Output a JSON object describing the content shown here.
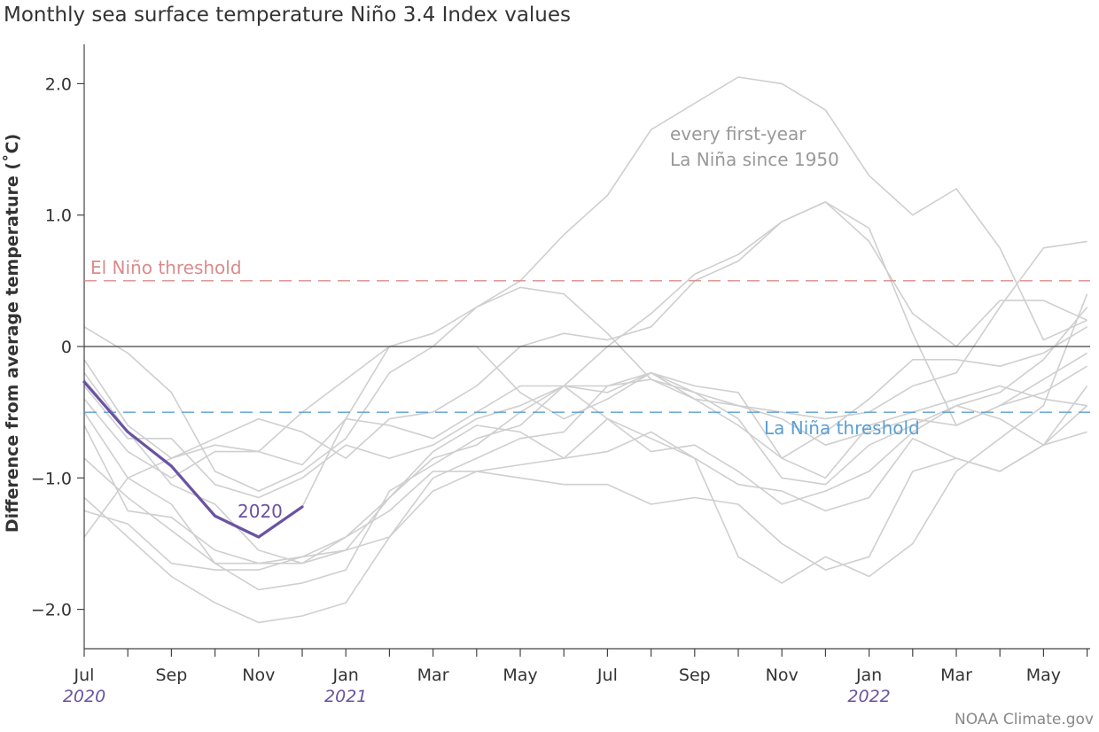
{
  "chart_data": {
    "type": "line",
    "title": "Monthly sea surface temperature Niño 3.4 Index values",
    "ylabel": "Difference from average temperature (˚C)",
    "ylim": [
      -2.3,
      2.25
    ],
    "x_months": [
      "Jul 2020",
      "Aug 2020",
      "Sep 2020",
      "Oct 2020",
      "Nov 2020",
      "Dec 2020",
      "Jan 2021",
      "Feb 2021",
      "Mar 2021",
      "Apr 2021",
      "May 2021",
      "Jun 2021",
      "Jul 2021",
      "Aug 2021",
      "Sep 2021",
      "Oct 2021",
      "Nov 2021",
      "Dec 2021",
      "Jan 2022",
      "Feb 2022",
      "Mar 2022",
      "Apr 2022",
      "May 2022",
      "Jun 2022"
    ],
    "x_tick_labels": [
      "Jul",
      "Sep",
      "Nov",
      "Jan",
      "Mar",
      "May",
      "Jul",
      "Sep",
      "Nov",
      "Jan",
      "Mar",
      "May"
    ],
    "x_tick_label_indices": [
      0,
      2,
      4,
      6,
      8,
      10,
      12,
      14,
      16,
      18,
      20,
      22
    ],
    "year_labels": [
      {
        "text": "2020",
        "index": 0
      },
      {
        "text": "2021",
        "index": 6
      },
      {
        "text": "2022",
        "index": 18
      }
    ],
    "y_ticks": [
      {
        "value": 2.0,
        "label": "2.0"
      },
      {
        "value": 1.0,
        "label": "1.0"
      },
      {
        "value": 0,
        "label": "0"
      },
      {
        "value": -1.0,
        "label": "−1.0"
      },
      {
        "value": -2.0,
        "label": "−2.0"
      }
    ],
    "thresholds": [
      {
        "label": "El Niño threshold",
        "value": 0.5,
        "color": "#d98c8c"
      },
      {
        "label": "La Niña threshold",
        "value": -0.5,
        "color": "#5a9fd4"
      }
    ],
    "background_annotation": [
      "every first-year",
      "La Niña since 1950"
    ],
    "background_color": "#cfcfcf",
    "highlight_color": "#6a52a3",
    "background_series": [
      [
        -0.2,
        -0.65,
        -0.9,
        -1.28,
        -1.45,
        -1.22,
        -0.55,
        -0.6,
        -0.7,
        -0.5,
        -0.3,
        -0.3,
        -0.3,
        -0.2,
        -0.35,
        -0.45,
        -0.55,
        -0.75,
        -0.65,
        -0.55,
        -0.6,
        -0.45,
        -0.35,
        -0.15
      ],
      [
        0.15,
        -0.05,
        -0.35,
        -0.95,
        -1.1,
        -0.95,
        -0.7,
        -0.2,
        0.0,
        0.0,
        -0.35,
        -0.55,
        -0.4,
        -0.2,
        -0.4,
        -0.6,
        -0.85,
        -0.65,
        -0.4,
        -0.1,
        -0.1,
        -0.15,
        -0.05,
        0.15
      ],
      [
        -0.1,
        -0.6,
        -0.85,
        -0.75,
        -0.8,
        -0.9,
        -0.55,
        0.0,
        0.1,
        0.3,
        0.45,
        0.4,
        0.1,
        -0.25,
        -0.4,
        -0.45,
        -0.5,
        -0.55,
        -0.5,
        -0.3,
        -0.2,
        0.3,
        0.75,
        0.8
      ],
      [
        -0.5,
        -1.0,
        -1.2,
        -1.65,
        -1.85,
        -1.8,
        -1.7,
        -1.1,
        -0.9,
        -0.7,
        -0.6,
        -0.3,
        -0.35,
        -0.2,
        -0.3,
        -0.35,
        -0.85,
        -1.0,
        -0.6,
        -0.5,
        -0.4,
        -0.3,
        -0.4,
        -0.45
      ],
      [
        -1.45,
        -1.0,
        -0.85,
        -0.7,
        -0.55,
        -0.65,
        -0.85,
        -0.55,
        -0.5,
        -0.3,
        0.0,
        0.1,
        0.05,
        0.15,
        0.5,
        0.65,
        0.95,
        1.1,
        0.8,
        0.25,
        0.0,
        0.35,
        0.35,
        0.2
      ],
      [
        -0.6,
        -1.25,
        -1.3,
        -1.55,
        -1.65,
        -1.6,
        -1.45,
        -1.15,
        -0.85,
        -0.75,
        -0.5,
        -0.3,
        0.0,
        0.25,
        0.55,
        0.7,
        0.95,
        1.1,
        0.9,
        0.1,
        -0.6,
        -0.45,
        -0.25,
        -0.05
      ],
      [
        -0.4,
        -0.8,
        -1.0,
        -0.8,
        -0.8,
        -0.5,
        -0.25,
        0.0,
        0.0,
        0.3,
        0.5,
        0.85,
        1.15,
        1.65,
        1.85,
        2.05,
        2.0,
        1.8,
        1.3,
        1.0,
        1.2,
        0.75,
        0.05,
        0.2
      ],
      [
        -0.85,
        -1.15,
        -1.4,
        -1.65,
        -1.65,
        -1.65,
        -1.55,
        -1.45,
        -1.0,
        -0.85,
        -0.7,
        -0.65,
        -0.3,
        -0.25,
        -0.35,
        -0.55,
        -1.0,
        -1.05,
        -0.75,
        -0.6,
        -0.45,
        -0.55,
        -0.75,
        -0.3
      ],
      [
        -1.25,
        -1.35,
        -1.65,
        -1.7,
        -1.7,
        -1.6,
        -1.55,
        -1.15,
        -0.8,
        -0.6,
        -0.65,
        -0.85,
        -0.55,
        -0.8,
        -0.75,
        -0.95,
        -1.2,
        -1.1,
        -0.95,
        -0.65,
        -0.45,
        -0.35,
        -0.1,
        0.3
      ],
      [
        -0.3,
        -0.7,
        -0.7,
        -1.05,
        -1.15,
        -1.0,
        -0.75,
        -0.85,
        -0.75,
        -0.55,
        -0.45,
        -0.3,
        -0.55,
        -0.7,
        -0.85,
        -1.6,
        -1.8,
        -1.6,
        -1.75,
        -1.5,
        -0.95,
        -0.7,
        -0.45,
        0.4
      ],
      [
        -1.15,
        -1.45,
        -1.75,
        -1.95,
        -2.1,
        -2.05,
        -1.95,
        -1.45,
        -1.1,
        -0.95,
        -1.0,
        -1.05,
        -1.05,
        -1.2,
        -1.15,
        -1.2,
        -1.5,
        -1.7,
        -1.6,
        -0.95,
        -0.85,
        -0.95,
        -0.75,
        -0.65
      ],
      [
        -0.25,
        -0.65,
        -1.05,
        -1.2,
        -1.55,
        -1.65,
        -1.45,
        -1.25,
        -0.95,
        -0.95,
        -0.9,
        -0.85,
        -0.8,
        -0.65,
        -0.85,
        -1.05,
        -1.1,
        -1.25,
        -1.15,
        -0.7,
        -0.85,
        -0.95,
        -0.75,
        -0.45
      ]
    ],
    "highlight_series": {
      "name": "2020",
      "values": [
        -0.27,
        -0.65,
        -0.91,
        -1.29,
        -1.45,
        -1.22
      ]
    }
  },
  "credit": "NOAA Climate.gov"
}
